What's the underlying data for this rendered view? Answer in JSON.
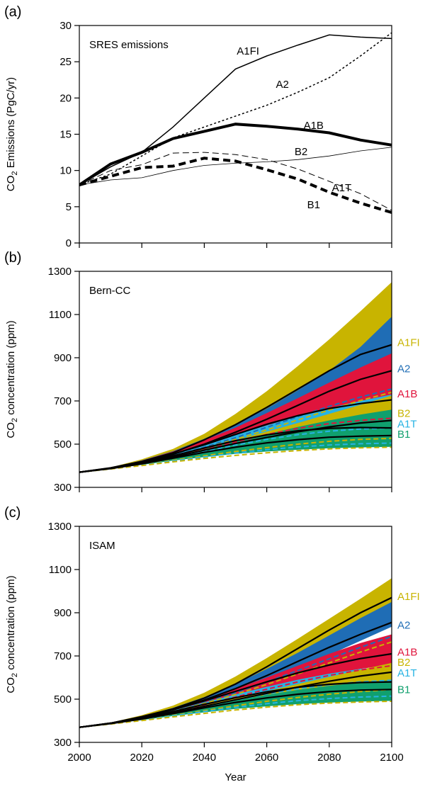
{
  "chart_data": [
    {
      "panel": "(a)",
      "type": "line",
      "title": "SRES emissions",
      "ylabel_main": "CO",
      "ylabel_sub": "2",
      "ylabel_rest": " Emissions (PgC/yr)",
      "xlim": [
        2000,
        2100
      ],
      "ylim": [
        0,
        30
      ],
      "yticks": [
        0,
        5,
        10,
        15,
        20,
        25,
        30
      ],
      "x": [
        2000,
        2010,
        2020,
        2030,
        2040,
        2050,
        2060,
        2070,
        2080,
        2090,
        2100
      ],
      "series": [
        {
          "name": "A1FI",
          "values": [
            8,
            10.5,
            12.5,
            16,
            20,
            24,
            25.8,
            27.3,
            28.7,
            28.4,
            28.2
          ],
          "style": "solid",
          "width": 1.5
        },
        {
          "name": "A2",
          "values": [
            8,
            9.5,
            12,
            14.5,
            16,
            17.5,
            19,
            20.8,
            22.8,
            25.8,
            29
          ],
          "style": "dotted",
          "width": 1.5
        },
        {
          "name": "A1B",
          "values": [
            8,
            10.9,
            12.5,
            14.4,
            15.4,
            16.4,
            16.1,
            15.7,
            15.2,
            14.2,
            13.5
          ],
          "style": "solid",
          "width": 4
        },
        {
          "name": "B2",
          "values": [
            8,
            8.7,
            9,
            10,
            10.7,
            11,
            11.2,
            11.5,
            12,
            12.7,
            13.2
          ],
          "style": "solid",
          "width": 0.8
        },
        {
          "name": "A1T",
          "values": [
            8,
            10,
            10.8,
            12.4,
            12.5,
            12.2,
            11.5,
            10.2,
            8.5,
            6.8,
            4.5
          ],
          "style": "dashed",
          "width": 1
        },
        {
          "name": "B1",
          "values": [
            8,
            9.2,
            10.4,
            10.6,
            11.7,
            11.3,
            10.1,
            8.8,
            7,
            5.5,
            4.2
          ],
          "style": "dashed",
          "width": 4
        }
      ],
      "labels": [
        {
          "text": "A1FI",
          "x": 2054,
          "y": 26.5
        },
        {
          "text": "A2",
          "x": 2065,
          "y": 21.9
        },
        {
          "text": "A1B",
          "x": 2075,
          "y": 16.2
        },
        {
          "text": "B2",
          "x": 2071,
          "y": 12.6
        },
        {
          "text": "A1T",
          "x": 2084,
          "y": 7.6
        },
        {
          "text": "B1",
          "x": 2075,
          "y": 5.3
        }
      ]
    },
    {
      "panel": "(b)",
      "type": "area",
      "title": "Bern-CC",
      "ylabel_main": "CO",
      "ylabel_sub": "2",
      "ylabel_rest": " concentration (ppm)",
      "xlim": [
        2000,
        2100
      ],
      "ylim": [
        300,
        1300
      ],
      "yticks": [
        300,
        500,
        700,
        900,
        1100,
        1300
      ],
      "x": [
        2000,
        2010,
        2020,
        2030,
        2040,
        2050,
        2060,
        2070,
        2080,
        2090,
        2100
      ],
      "bands": [
        {
          "name": "A1FI",
          "color": "#c8b400",
          "low": [
            370,
            388,
            414,
            447,
            495,
            552,
            617,
            686,
            760,
            836,
            910
          ],
          "high": [
            370,
            392,
            430,
            478,
            548,
            640,
            745,
            862,
            985,
            1115,
            1250
          ]
        },
        {
          "name": "A2",
          "color": "#1f6db5",
          "low": [
            370,
            388,
            414,
            445,
            486,
            534,
            590,
            655,
            725,
            800,
            880
          ],
          "high": [
            370,
            391,
            425,
            468,
            525,
            590,
            665,
            750,
            840,
            950,
            1090
          ]
        },
        {
          "name": "A1B",
          "color": "#e0143c",
          "low": [
            370,
            388,
            412,
            443,
            478,
            516,
            554,
            592,
            624,
            648,
            665
          ],
          "high": [
            370,
            391,
            424,
            466,
            518,
            576,
            644,
            713,
            785,
            855,
            920
          ]
        },
        {
          "name": "A1T",
          "color": "#27b3e3",
          "low": [
            370,
            387,
            410,
            438,
            468,
            495,
            518,
            537,
            552,
            562,
            570
          ],
          "high": [
            370,
            390,
            420,
            455,
            498,
            543,
            587,
            630,
            667,
            700,
            730
          ]
        },
        {
          "name": "B2",
          "color": "#c8b400",
          "low": [
            370,
            386,
            406,
            430,
            455,
            480,
            505,
            530,
            555,
            580,
            605
          ],
          "high": [
            370,
            389,
            415,
            445,
            480,
            518,
            558,
            598,
            640,
            682,
            725
          ]
        },
        {
          "name": "B1",
          "color": "#10a06e",
          "low": [
            370,
            386,
            404,
            424,
            440,
            455,
            466,
            474,
            481,
            485,
            488
          ],
          "high": [
            370,
            389,
            414,
            443,
            477,
            512,
            547,
            580,
            610,
            637,
            660
          ]
        }
      ],
      "black_lines": [
        {
          "name": "A1FI",
          "values": [
            370,
            390,
            420,
            460,
            520,
            590,
            670,
            755,
            840,
            915,
            960
          ]
        },
        {
          "name": "A2",
          "values": [
            370,
            389,
            417,
            453,
            500,
            555,
            615,
            680,
            745,
            800,
            840
          ]
        },
        {
          "name": "A1B",
          "values": [
            370,
            389,
            417,
            454,
            497,
            545,
            592,
            632,
            665,
            688,
            705
          ]
        },
        {
          "name": "B2",
          "values": [
            370,
            388,
            411,
            440,
            472,
            503,
            531,
            557,
            580,
            598,
            610
          ]
        },
        {
          "name": "A1T",
          "values": [
            370,
            388,
            414,
            446,
            482,
            516,
            543,
            562,
            573,
            577,
            575
          ]
        },
        {
          "name": "B1",
          "values": [
            370,
            387,
            409,
            435,
            462,
            486,
            506,
            521,
            532,
            537,
            540
          ]
        }
      ],
      "dashed_lines": [
        {
          "color": "#1f6db5",
          "values": [
            370,
            388,
            413,
            446,
            486,
            530,
            578,
            628,
            675,
            718,
            755
          ]
        },
        {
          "color": "#c8b400",
          "values": [
            370,
            388,
            412,
            443,
            481,
            522,
            566,
            612,
            658,
            702,
            740
          ]
        },
        {
          "color": "#e0143c",
          "values": [
            370,
            387,
            410,
            440,
            474,
            510,
            545,
            573,
            595,
            610,
            620
          ]
        },
        {
          "color": "#27b3e3",
          "values": [
            370,
            387,
            409,
            436,
            466,
            496,
            522,
            544,
            560,
            570,
            575
          ]
        },
        {
          "color": "#c8b400",
          "values": [
            370,
            386,
            404,
            425,
            446,
            466,
            484,
            500,
            513,
            522,
            527
          ]
        },
        {
          "color": "#27b3e3",
          "values": [
            370,
            386,
            403,
            422,
            441,
            459,
            474,
            487,
            496,
            502,
            505
          ]
        },
        {
          "color": "#c8b400",
          "values": [
            370,
            385,
            401,
            418,
            434,
            448,
            460,
            470,
            478,
            483,
            486
          ]
        }
      ],
      "labels": [
        {
          "text": "A1FI",
          "color": "#c8b400",
          "y": 970
        },
        {
          "text": "A2",
          "color": "#1f6db5",
          "y": 850
        },
        {
          "text": "A1B",
          "color": "#e0143c",
          "y": 732
        },
        {
          "text": "B2",
          "color": "#c8b400",
          "y": 642
        },
        {
          "text": "A1T",
          "color": "#27b3e3",
          "y": 594
        },
        {
          "text": "B1",
          "color": "#10a06e",
          "y": 546
        }
      ]
    },
    {
      "panel": "(c)",
      "type": "area",
      "title": "ISAM",
      "xlabel": "Year",
      "ylabel_main": "CO",
      "ylabel_sub": "2",
      "ylabel_rest": " concentration (ppm)",
      "xlim": [
        2000,
        2100
      ],
      "ylim": [
        300,
        1300
      ],
      "xticks": [
        2000,
        2020,
        2040,
        2060,
        2080,
        2100
      ],
      "yticks": [
        300,
        500,
        700,
        900,
        1100,
        1300
      ],
      "x": [
        2000,
        2010,
        2020,
        2030,
        2040,
        2050,
        2060,
        2070,
        2080,
        2090,
        2100
      ],
      "bands": [
        {
          "name": "A1FI",
          "color": "#c8b400",
          "low": [
            370,
            388,
            414,
            447,
            492,
            545,
            607,
            673,
            742,
            812,
            880
          ],
          "high": [
            370,
            391,
            426,
            470,
            530,
            605,
            690,
            780,
            872,
            965,
            1060
          ]
        },
        {
          "name": "A2",
          "color": "#1f6db5",
          "low": [
            370,
            388,
            414,
            445,
            484,
            530,
            584,
            642,
            705,
            770,
            835
          ],
          "high": [
            370,
            390,
            421,
            460,
            510,
            570,
            640,
            715,
            795,
            875,
            950
          ]
        },
        {
          "name": "A1B",
          "color": "#e0143c",
          "low": [
            370,
            388,
            413,
            443,
            478,
            514,
            550,
            585,
            615,
            640,
            660
          ],
          "high": [
            370,
            390,
            420,
            456,
            500,
            548,
            600,
            655,
            710,
            760,
            800
          ]
        },
        {
          "name": "A1T",
          "color": "#27b3e3",
          "low": [
            370,
            387,
            410,
            437,
            466,
            494,
            518,
            538,
            554,
            565,
            570
          ],
          "high": [
            370,
            389,
            416,
            448,
            485,
            522,
            557,
            590,
            618,
            640,
            655
          ]
        },
        {
          "name": "B2",
          "color": "#c8b400",
          "low": [
            370,
            386,
            406,
            429,
            453,
            477,
            500,
            522,
            544,
            566,
            588
          ],
          "high": [
            370,
            388,
            412,
            440,
            472,
            505,
            537,
            570,
            603,
            636,
            668
          ]
        },
        {
          "name": "B1",
          "color": "#10a06e",
          "low": [
            370,
            386,
            403,
            422,
            439,
            455,
            467,
            477,
            484,
            489,
            492
          ],
          "high": [
            370,
            388,
            411,
            437,
            466,
            494,
            520,
            543,
            562,
            577,
            588
          ]
        }
      ],
      "black_lines": [
        {
          "name": "A1FI",
          "values": [
            370,
            389,
            419,
            455,
            505,
            570,
            650,
            735,
            820,
            900,
            970
          ]
        },
        {
          "name": "A2",
          "values": [
            370,
            389,
            416,
            451,
            496,
            549,
            609,
            675,
            740,
            800,
            855
          ]
        },
        {
          "name": "A1B",
          "values": [
            370,
            389,
            416,
            451,
            492,
            536,
            580,
            622,
            658,
            688,
            710
          ]
        },
        {
          "name": "B2",
          "values": [
            370,
            388,
            410,
            437,
            467,
            497,
            527,
            556,
            583,
            607,
            625
          ]
        },
        {
          "name": "A1T",
          "values": [
            370,
            388,
            413,
            443,
            476,
            507,
            534,
            555,
            569,
            577,
            580
          ]
        },
        {
          "name": "B1",
          "values": [
            370,
            387,
            408,
            433,
            460,
            485,
            506,
            523,
            535,
            542,
            545
          ]
        }
      ],
      "dashed_lines": [
        {
          "color": "#1f6db5",
          "values": [
            370,
            388,
            413,
            446,
            485,
            530,
            580,
            633,
            687,
            740,
            790
          ]
        },
        {
          "color": "#c8b400",
          "values": [
            370,
            388,
            412,
            443,
            480,
            522,
            568,
            617,
            668,
            718,
            765
          ]
        },
        {
          "color": "#e0143c",
          "values": [
            370,
            387,
            410,
            440,
            474,
            510,
            546,
            580,
            610,
            635,
            655
          ]
        },
        {
          "color": "#27b3e3",
          "values": [
            370,
            387,
            409,
            436,
            466,
            496,
            524,
            548,
            567,
            580,
            588
          ]
        },
        {
          "color": "#c8b400",
          "values": [
            370,
            386,
            404,
            425,
            447,
            469,
            490,
            508,
            523,
            535,
            545
          ]
        },
        {
          "color": "#27b3e3",
          "values": [
            370,
            386,
            403,
            423,
            443,
            462,
            479,
            493,
            503,
            510,
            514
          ]
        },
        {
          "color": "#c8b400",
          "values": [
            370,
            385,
            401,
            418,
            434,
            450,
            463,
            474,
            482,
            487,
            490
          ]
        }
      ],
      "labels": [
        {
          "text": "A1FI",
          "color": "#c8b400",
          "y": 975
        },
        {
          "text": "A2",
          "color": "#1f6db5",
          "y": 843
        },
        {
          "text": "A1B",
          "color": "#e0143c",
          "y": 718
        },
        {
          "text": "B2",
          "color": "#c8b400",
          "y": 670
        },
        {
          "text": "A1T",
          "color": "#27b3e3",
          "y": 622
        },
        {
          "text": "B1",
          "color": "#10a06e",
          "y": 544
        }
      ]
    }
  ]
}
